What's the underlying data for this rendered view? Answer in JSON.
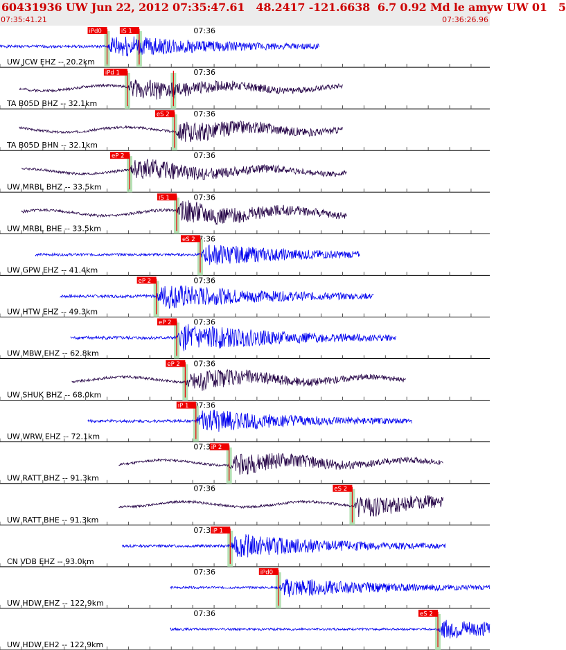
{
  "header": {
    "title": "60431936 UW Jun 22, 2012 07:35:47.61   48.2417 -121.6638  6.7 0.92 Md le amyw UW 01   5",
    "start_time": "07:35:41.21",
    "end_time": "07:36:26.96"
  },
  "chart_data": {
    "type": "seismogram",
    "time_window": [
      "07:35:41.21",
      "07:36:26.96"
    ],
    "tick_label": "07:36",
    "tick_time_s": 18.79,
    "duration_s": 45.75,
    "grid_interval_s": 2,
    "colors": {
      "ehz_trace": "#0000ee",
      "broadband_trace": "#220044",
      "pick_flag": "#ee0000",
      "pick_band": "#a8dca8",
      "grid": "#555555",
      "header_text": "#cc0000"
    },
    "traces": [
      {
        "label": "UW JCW EHZ -- 20.2km",
        "kind": "ehz",
        "start_s": 0.0,
        "end_s": 29.8,
        "amp": 0.55,
        "seed": 1,
        "picks": [
          {
            "label": "iPd0",
            "t": 10.0
          },
          {
            "label": "iS 1",
            "t": 13.0
          }
        ]
      },
      {
        "label": "TA B05D BHZ -- 32.1km",
        "kind": "bb",
        "start_s": 1.8,
        "end_s": 32.0,
        "amp": 0.5,
        "seed": 2,
        "picks": [
          {
            "label": "iPd 1",
            "t": 11.9
          },
          {
            "label": "",
            "t": 16.2
          }
        ]
      },
      {
        "label": "TA B05D BHN -- 32.1km",
        "kind": "bb",
        "start_s": 1.8,
        "end_s": 32.0,
        "amp": 0.5,
        "seed": 3,
        "picks": [
          {
            "label": "eS 2",
            "t": 16.3
          }
        ]
      },
      {
        "label": "UW MRBL BHZ -- 33.5km",
        "kind": "bb",
        "start_s": 2.0,
        "end_s": 32.4,
        "amp": 0.5,
        "seed": 4,
        "picks": [
          {
            "label": "eP 2",
            "t": 12.1
          }
        ]
      },
      {
        "label": "UW MRBL BHE -- 33.5km",
        "kind": "bb",
        "start_s": 2.0,
        "end_s": 32.4,
        "amp": 0.55,
        "seed": 5,
        "picks": [
          {
            "label": "iS 1",
            "t": 16.5
          }
        ]
      },
      {
        "label": "UW GPW EHZ -- 41.4km",
        "kind": "ehz",
        "start_s": 3.3,
        "end_s": 33.6,
        "amp": 0.5,
        "seed": 6,
        "picks": [
          {
            "label": "eS 2",
            "t": 18.7
          }
        ]
      },
      {
        "label": "UW HTW EHZ -- 49.3km",
        "kind": "ehz",
        "start_s": 5.6,
        "end_s": 34.9,
        "amp": 0.6,
        "seed": 7,
        "picks": [
          {
            "label": "eP 2",
            "t": 14.6
          }
        ]
      },
      {
        "label": "UW MBW EHZ -- 62.8km",
        "kind": "ehz",
        "start_s": 6.6,
        "end_s": 37.0,
        "amp": 0.65,
        "seed": 8,
        "picks": [
          {
            "label": "eP 2",
            "t": 16.5
          }
        ]
      },
      {
        "label": "UW SHUK BHZ -- 68.0km",
        "kind": "bb",
        "start_s": 6.7,
        "end_s": 37.9,
        "amp": 0.5,
        "seed": 9,
        "picks": [
          {
            "label": "eP 2",
            "t": 17.3
          }
        ]
      },
      {
        "label": "UW WRW EHZ -- 72.1km",
        "kind": "ehz",
        "start_s": 8.2,
        "end_s": 38.5,
        "amp": 0.55,
        "seed": 10,
        "picks": [
          {
            "label": "iP 1",
            "t": 18.3
          }
        ]
      },
      {
        "label": "UW RATT BHZ -- 91.3km",
        "kind": "bb",
        "start_s": 11.1,
        "end_s": 41.4,
        "amp": 0.5,
        "seed": 11,
        "picks": [
          {
            "label": "iP 2",
            "t": 21.4
          }
        ]
      },
      {
        "label": "UW RATT BHE -- 91.3km",
        "kind": "bb",
        "start_s": 11.1,
        "end_s": 41.4,
        "amp": 0.5,
        "seed": 12,
        "picks": [
          {
            "label": "eS 2",
            "t": 32.9
          }
        ]
      },
      {
        "label": "CN VDB EHZ -- 93.0km",
        "kind": "ehz",
        "start_s": 11.4,
        "end_s": 41.6,
        "amp": 0.55,
        "seed": 13,
        "picks": [
          {
            "label": "iP 1",
            "t": 21.5
          }
        ]
      },
      {
        "label": "UW HDW EHZ -- 122.9km",
        "kind": "ehz",
        "start_s": 15.9,
        "end_s": 45.75,
        "amp": 0.45,
        "seed": 14,
        "picks": [
          {
            "label": "iPd0",
            "t": 26.0
          }
        ]
      },
      {
        "label": "UW HDW EH2 -- 122.9km",
        "kind": "ehz",
        "start_s": 15.9,
        "end_s": 45.75,
        "amp": 0.45,
        "seed": 15,
        "picks": [
          {
            "label": "eS 2",
            "t": 40.9
          }
        ]
      }
    ]
  }
}
